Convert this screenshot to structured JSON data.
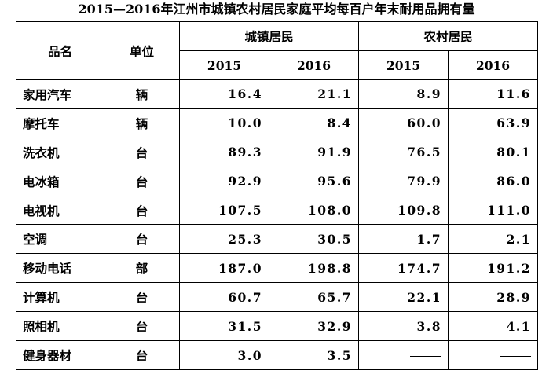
{
  "title": "2015—2016年江州市城镇农村居民家庭平均每百户年末耐用品拥有量",
  "headers": {
    "item": "品名",
    "unit": "单位",
    "urban": "城镇居民",
    "rural": "农村居民",
    "years": [
      "2015",
      "2016",
      "2015",
      "2016"
    ]
  },
  "rows": [
    {
      "name": "家用汽车",
      "unit": "辆",
      "values": [
        "16.4",
        "21.1",
        "8.9",
        "11.6"
      ]
    },
    {
      "name": "摩托车",
      "unit": "辆",
      "values": [
        "10.0",
        "8.4",
        "60.0",
        "63.9"
      ]
    },
    {
      "name": "洗衣机",
      "unit": "台",
      "values": [
        "89.3",
        "91.9",
        "76.5",
        "80.1"
      ]
    },
    {
      "name": "电冰箱",
      "unit": "台",
      "values": [
        "92.9",
        "95.6",
        "79.9",
        "86.0"
      ]
    },
    {
      "name": "电视机",
      "unit": "台",
      "values": [
        "107.5",
        "108.0",
        "109.8",
        "111.0"
      ]
    },
    {
      "name": "空调",
      "unit": "台",
      "values": [
        "25.3",
        "30.5",
        "1.7",
        "2.1"
      ]
    },
    {
      "name": "移动电话",
      "unit": "部",
      "values": [
        "187.0",
        "198.8",
        "174.7",
        "191.2"
      ]
    },
    {
      "name": "计算机",
      "unit": "台",
      "values": [
        "60.7",
        "65.7",
        "22.1",
        "28.9"
      ]
    },
    {
      "name": "照相机",
      "unit": "台",
      "values": [
        "31.5",
        "32.9",
        "3.8",
        "4.1"
      ]
    },
    {
      "name": "健身器材",
      "unit": "台",
      "values": [
        "3.0",
        "3.5",
        "—",
        "—"
      ]
    }
  ]
}
